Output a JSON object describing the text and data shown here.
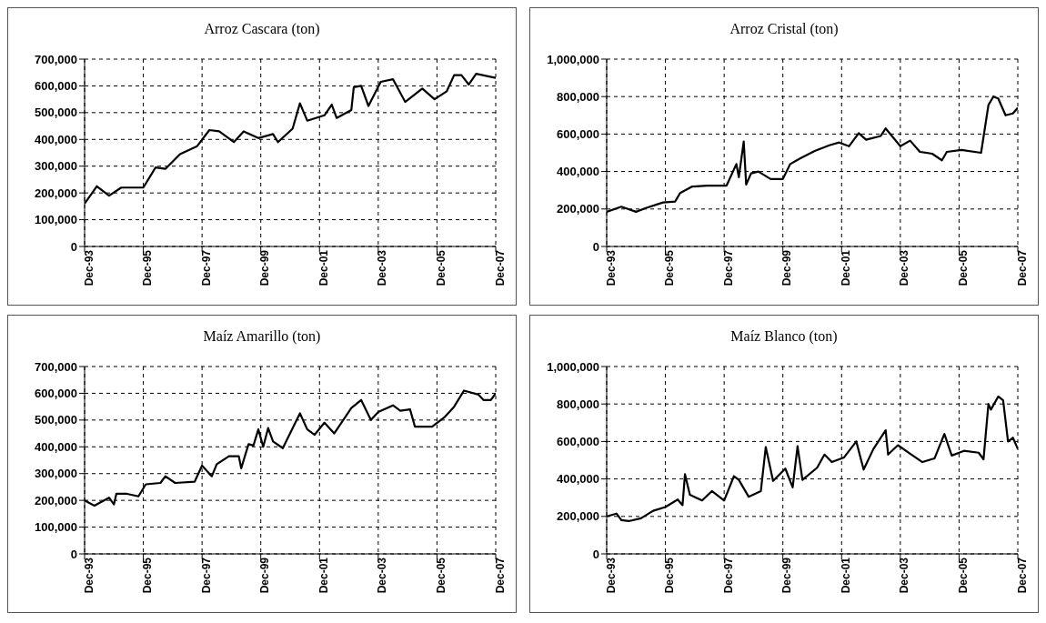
{
  "chart_data": [
    {
      "type": "line",
      "title": "Arroz Cascara (ton)",
      "grid": true,
      "marker": "none",
      "line_style": "solid",
      "xlim": [
        "1993-12",
        "2007-12"
      ],
      "xticks": [
        {
          "value": "1993-12",
          "label": "Dec-93"
        },
        {
          "value": "1995-12",
          "label": "Dec-95"
        },
        {
          "value": "1997-12",
          "label": "Dec-97"
        },
        {
          "value": "1999-12",
          "label": "Dec-99"
        },
        {
          "value": "2001-12",
          "label": "Dec-01"
        },
        {
          "value": "2003-12",
          "label": "Dec-03"
        },
        {
          "value": "2005-12",
          "label": "Dec-05"
        },
        {
          "value": "2007-12",
          "label": "Dec-07"
        }
      ],
      "ylim": [
        0,
        700000
      ],
      "yticks": [
        {
          "value": 0,
          "label": "0"
        },
        {
          "value": 100000,
          "label": "100,000"
        },
        {
          "value": 200000,
          "label": "200,000"
        },
        {
          "value": 300000,
          "label": "300,000"
        },
        {
          "value": 400000,
          "label": "400,000"
        },
        {
          "value": 500000,
          "label": "500,000"
        },
        {
          "value": 600000,
          "label": "600,000"
        },
        {
          "value": 700000,
          "label": "700,000"
        }
      ],
      "x": [
        "1993-12",
        "1994-05",
        "1994-10",
        "1995-03",
        "1995-12",
        "1996-05",
        "1996-09",
        "1997-03",
        "1997-10",
        "1998-03",
        "1998-07",
        "1999-01",
        "1999-05",
        "1999-11",
        "2000-05",
        "2000-07",
        "2001-01",
        "2001-04",
        "2001-07",
        "2002-02",
        "2002-05",
        "2002-07",
        "2003-01",
        "2003-02",
        "2003-05",
        "2003-08",
        "2004-01",
        "2004-06",
        "2004-11",
        "2005-06",
        "2005-11",
        "2006-04",
        "2006-07",
        "2006-10",
        "2007-01",
        "2007-04",
        "2007-12"
      ],
      "series": [
        {
          "color": "#000000",
          "values": [
            160000,
            225000,
            190000,
            220000,
            220000,
            295000,
            290000,
            345000,
            375000,
            435000,
            430000,
            390000,
            430000,
            405000,
            420000,
            390000,
            440000,
            535000,
            470000,
            490000,
            530000,
            480000,
            510000,
            595000,
            600000,
            525000,
            615000,
            625000,
            540000,
            590000,
            550000,
            580000,
            640000,
            640000,
            605000,
            645000,
            630000
          ]
        }
      ]
    },
    {
      "type": "line",
      "title": "Arroz Cristal (ton)",
      "grid": true,
      "marker": "none",
      "line_style": "solid",
      "xlim": [
        "1993-12",
        "2007-12"
      ],
      "xticks": [
        {
          "value": "1993-12",
          "label": "Dec-93"
        },
        {
          "value": "1995-12",
          "label": "Dec-95"
        },
        {
          "value": "1997-12",
          "label": "Dec-97"
        },
        {
          "value": "1999-12",
          "label": "Dec-99"
        },
        {
          "value": "2001-12",
          "label": "Dec-01"
        },
        {
          "value": "2003-12",
          "label": "Dec-03"
        },
        {
          "value": "2005-12",
          "label": "Dec-05"
        },
        {
          "value": "2007-12",
          "label": "Dec-07"
        }
      ],
      "ylim": [
        0,
        1000000
      ],
      "yticks": [
        {
          "value": 0,
          "label": "0"
        },
        {
          "value": 200000,
          "label": "200,000"
        },
        {
          "value": 400000,
          "label": "400,000"
        },
        {
          "value": 600000,
          "label": "600,000"
        },
        {
          "value": 800000,
          "label": "800,000"
        },
        {
          "value": 1000000,
          "label": "1,000,000"
        }
      ],
      "x": [
        "1993-12",
        "1994-06",
        "1994-12",
        "1995-04",
        "1995-11",
        "1996-04",
        "1996-06",
        "1996-11",
        "1997-05",
        "1998-01",
        "1998-05",
        "1998-06",
        "1998-08",
        "1998-09",
        "1998-11",
        "1999-02",
        "1999-07",
        "1999-12",
        "2000-03",
        "2000-07",
        "2001-01",
        "2001-07",
        "2001-11",
        "2002-03",
        "2002-07",
        "2002-10",
        "2003-04",
        "2003-06",
        "2003-12",
        "2004-04",
        "2004-08",
        "2005-01",
        "2005-05",
        "2005-07",
        "2006-01",
        "2006-09",
        "2006-12",
        "2007-02",
        "2007-04",
        "2007-07",
        "2007-10",
        "2007-12"
      ],
      "series": [
        {
          "color": "#000000",
          "values": [
            185000,
            212000,
            185000,
            205000,
            235000,
            240000,
            285000,
            320000,
            325000,
            325000,
            440000,
            370000,
            560000,
            330000,
            390000,
            400000,
            360000,
            360000,
            440000,
            470000,
            510000,
            540000,
            555000,
            535000,
            605000,
            570000,
            590000,
            630000,
            535000,
            565000,
            505000,
            495000,
            460000,
            505000,
            515000,
            500000,
            755000,
            800000,
            790000,
            700000,
            710000,
            740000
          ]
        }
      ]
    },
    {
      "type": "line",
      "title": "Maíz Amarillo (ton)",
      "grid": true,
      "marker": "none",
      "line_style": "solid",
      "xlim": [
        "1993-12",
        "2007-12"
      ],
      "xticks": [
        {
          "value": "1993-12",
          "label": "Dec-93"
        },
        {
          "value": "1995-12",
          "label": "Dec-95"
        },
        {
          "value": "1997-12",
          "label": "Dec-97"
        },
        {
          "value": "1999-12",
          "label": "Dec-99"
        },
        {
          "value": "2001-12",
          "label": "Dec-01"
        },
        {
          "value": "2003-12",
          "label": "Dec-03"
        },
        {
          "value": "2005-12",
          "label": "Dec-05"
        },
        {
          "value": "2007-12",
          "label": "Dec-07"
        }
      ],
      "ylim": [
        0,
        700000
      ],
      "yticks": [
        {
          "value": 0,
          "label": "0"
        },
        {
          "value": 100000,
          "label": "100,000"
        },
        {
          "value": 200000,
          "label": "200,000"
        },
        {
          "value": 300000,
          "label": "300,000"
        },
        {
          "value": 400000,
          "label": "400,000"
        },
        {
          "value": 500000,
          "label": "500,000"
        },
        {
          "value": 600000,
          "label": "600,000"
        },
        {
          "value": 700000,
          "label": "700,000"
        }
      ],
      "x": [
        "1993-12",
        "1994-04",
        "1994-10",
        "1994-12",
        "1995-01",
        "1995-05",
        "1995-10",
        "1996-01",
        "1996-07",
        "1996-09",
        "1997-01",
        "1997-09",
        "1997-12",
        "1998-04",
        "1998-06",
        "1998-11",
        "1999-03",
        "1999-04",
        "1999-07",
        "1999-09",
        "1999-11",
        "2000-01",
        "2000-03",
        "2000-05",
        "2000-09",
        "2001-04",
        "2001-07",
        "2001-10",
        "2002-02",
        "2002-06",
        "2003-01",
        "2003-05",
        "2003-09",
        "2003-12",
        "2004-06",
        "2004-09",
        "2005-01",
        "2005-03",
        "2005-10",
        "2006-03",
        "2006-07",
        "2006-11",
        "2007-05",
        "2007-07",
        "2007-10",
        "2007-12"
      ],
      "series": [
        {
          "color": "#000000",
          "values": [
            200000,
            180000,
            210000,
            185000,
            225000,
            225000,
            215000,
            260000,
            265000,
            290000,
            265000,
            270000,
            330000,
            290000,
            335000,
            365000,
            365000,
            320000,
            410000,
            405000,
            465000,
            400000,
            470000,
            420000,
            395000,
            525000,
            465000,
            445000,
            490000,
            450000,
            545000,
            575000,
            500000,
            530000,
            555000,
            535000,
            540000,
            475000,
            475000,
            510000,
            550000,
            610000,
            595000,
            575000,
            575000,
            600000
          ]
        }
      ]
    },
    {
      "type": "line",
      "title": "Maíz Blanco (ton)",
      "grid": true,
      "marker": "none",
      "line_style": "solid",
      "xlim": [
        "1993-12",
        "2007-12"
      ],
      "xticks": [
        {
          "value": "1993-12",
          "label": "Dec-93"
        },
        {
          "value": "1995-12",
          "label": "Dec-95"
        },
        {
          "value": "1997-12",
          "label": "Dec-97"
        },
        {
          "value": "1999-12",
          "label": "Dec-99"
        },
        {
          "value": "2001-12",
          "label": "Dec-01"
        },
        {
          "value": "2003-12",
          "label": "Dec-03"
        },
        {
          "value": "2005-12",
          "label": "Dec-05"
        },
        {
          "value": "2007-12",
          "label": "Dec-07"
        }
      ],
      "ylim": [
        0,
        1000000
      ],
      "yticks": [
        {
          "value": 0,
          "label": "0"
        },
        {
          "value": 200000,
          "label": "200,000"
        },
        {
          "value": 400000,
          "label": "400,000"
        },
        {
          "value": 600000,
          "label": "600,000"
        },
        {
          "value": 800000,
          "label": "800,000"
        },
        {
          "value": 1000000,
          "label": "1,000,000"
        }
      ],
      "x": [
        "1993-12",
        "1994-04",
        "1994-06",
        "1994-09",
        "1995-02",
        "1995-07",
        "1995-12",
        "1996-05",
        "1996-07",
        "1996-08",
        "1996-10",
        "1997-03",
        "1997-07",
        "1997-12",
        "1998-04",
        "1998-06",
        "1998-10",
        "1999-03",
        "1999-05",
        "1999-08",
        "2000-01",
        "2000-04",
        "2000-06",
        "2000-08",
        "2001-02",
        "2001-05",
        "2001-08",
        "2002-01",
        "2002-06",
        "2002-09",
        "2003-01",
        "2003-06",
        "2003-07",
        "2003-11",
        "2004-04",
        "2004-09",
        "2005-02",
        "2005-06",
        "2005-09",
        "2006-02",
        "2006-08",
        "2006-10",
        "2006-12",
        "2007-01",
        "2007-04",
        "2007-06",
        "2007-08",
        "2007-10",
        "2007-12"
      ],
      "series": [
        {
          "color": "#000000",
          "values": [
            200000,
            215000,
            180000,
            175000,
            190000,
            230000,
            250000,
            290000,
            260000,
            425000,
            315000,
            285000,
            335000,
            285000,
            415000,
            395000,
            305000,
            335000,
            570000,
            390000,
            455000,
            355000,
            575000,
            395000,
            460000,
            530000,
            490000,
            515000,
            600000,
            450000,
            560000,
            660000,
            530000,
            580000,
            535000,
            490000,
            510000,
            640000,
            525000,
            550000,
            540000,
            505000,
            800000,
            770000,
            840000,
            820000,
            600000,
            620000,
            560000
          ]
        }
      ]
    }
  ]
}
